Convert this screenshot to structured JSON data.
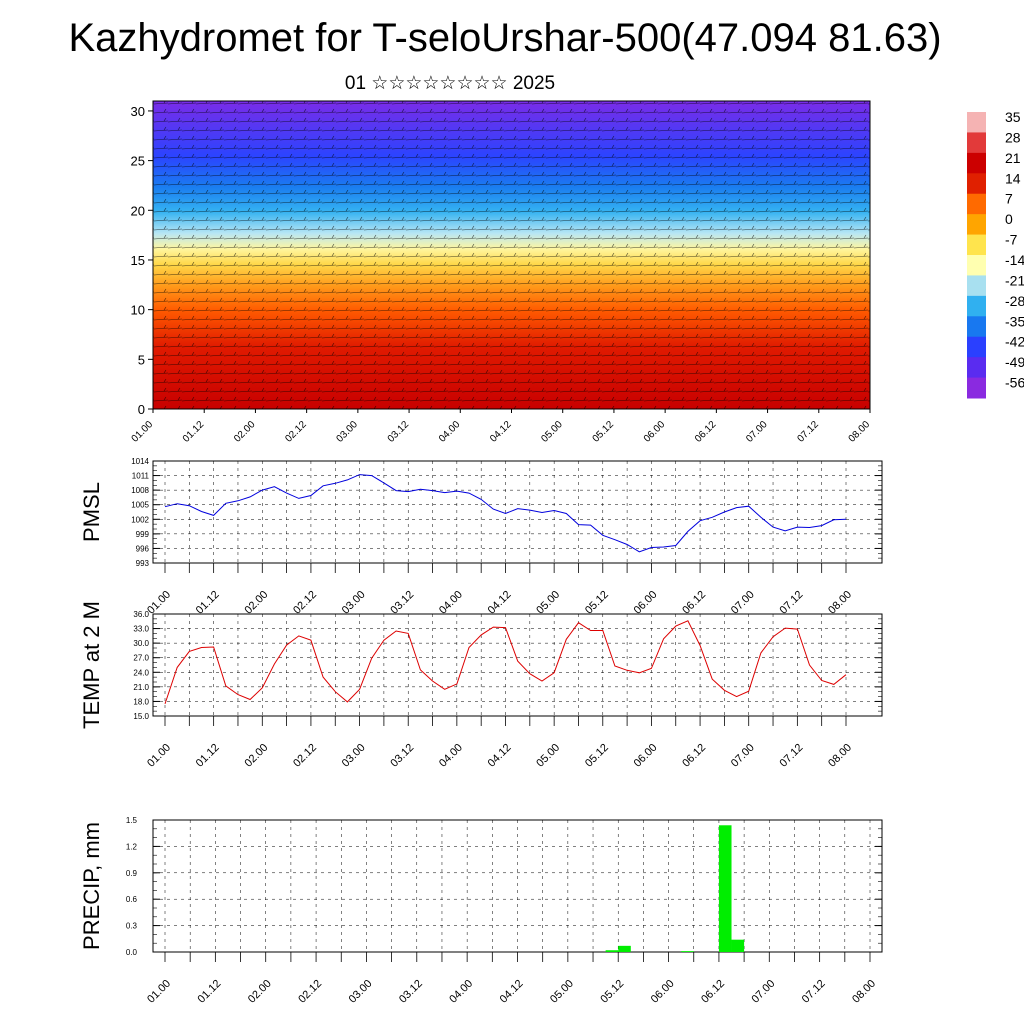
{
  "header": {
    "title": "Kazhydromet for T-seloUrshar-500(47.094 81.63)",
    "subtitle": "01 ☆☆☆☆☆☆☆☆ 2025"
  },
  "time_ticks": [
    "01.00",
    "01.12",
    "02.00",
    "02.12",
    "03.00",
    "03.12",
    "04.00",
    "04.12",
    "05.00",
    "05.12",
    "06.00",
    "06.12",
    "07.00",
    "07.12",
    "08.00"
  ],
  "chart_data": [
    {
      "type": "heatmap",
      "id": "cross-section",
      "description_of_fill": "temperature colour field with wind barbs",
      "x_ticks": [
        "01.00",
        "01.12",
        "02.00",
        "02.12",
        "03.00",
        "03.12",
        "04.00",
        "04.12",
        "05.00",
        "05.12",
        "06.00",
        "06.12",
        "07.00",
        "07.12",
        "08.00"
      ],
      "y_ticks": [
        0,
        5,
        10,
        15,
        20,
        25,
        30
      ],
      "ylim": [
        0,
        31
      ],
      "colorbar_labels": [
        "35",
        "28",
        "21",
        "14",
        "7",
        "0",
        "-7",
        "-14",
        "-21",
        "-28",
        "-35",
        "-42",
        "-49",
        "-56"
      ],
      "colorbar_colors": [
        "#f5b3b3",
        "#e23a3a",
        "#cc0000",
        "#e02000",
        "#ff6a00",
        "#ffa500",
        "#ffe44d",
        "#ffffb0",
        "#a8e0f0",
        "#30b0f0",
        "#1878f0",
        "#2a40ff",
        "#5a2cf0",
        "#8a2ae0"
      ]
    },
    {
      "type": "line",
      "id": "pmsl",
      "ylabel": "PMSL",
      "y_ticks": [
        "1014",
        "1011",
        "1008",
        "1005",
        "1002",
        "999",
        "996",
        "993"
      ],
      "ylim": [
        993,
        1014
      ],
      "color": "#0000dd",
      "x_ticks": [
        "01.00",
        "01.12",
        "02.00",
        "02.12",
        "03.00",
        "03.12",
        "04.00",
        "04.12",
        "05.00",
        "05.12",
        "06.00",
        "06.12",
        "07.00",
        "07.12",
        "08.00"
      ],
      "x": [
        0,
        3,
        6,
        9,
        12,
        15,
        18,
        21,
        24,
        27,
        30,
        33,
        36,
        39,
        42,
        45,
        48,
        51,
        54,
        57,
        60,
        63,
        66,
        69,
        72,
        75,
        78,
        81,
        84,
        87,
        90,
        93,
        96,
        99,
        102,
        105,
        108,
        111,
        114,
        117,
        120,
        123,
        126,
        129,
        132,
        135,
        138,
        141,
        144,
        147,
        150,
        153,
        156,
        159,
        162,
        165,
        168
      ],
      "values": [
        1004.6,
        1005.2,
        1004.8,
        1003.6,
        1002.8,
        1005.3,
        1005.8,
        1006.6,
        1008.0,
        1008.7,
        1007.4,
        1006.3,
        1006.9,
        1008.9,
        1009.4,
        1010.1,
        1011.2,
        1011.0,
        1009.5,
        1007.9,
        1007.7,
        1008.2,
        1007.9,
        1007.5,
        1007.8,
        1007.4,
        1006.1,
        1004.1,
        1003.2,
        1004.2,
        1003.9,
        1003.4,
        1003.8,
        1003.2,
        1000.9,
        1000.8,
        998.7,
        997.8,
        996.8,
        995.3,
        996.2,
        996.3,
        996.6,
        999.5,
        1001.7,
        1002.4,
        1003.5,
        1004.4,
        1004.7,
        1002.4,
        1000.4,
        999.6,
        1000.4,
        1000.3,
        1000.7,
        1001.9,
        1002.0
      ]
    },
    {
      "type": "line",
      "id": "temp",
      "ylabel": "TEMP at 2 M",
      "y_ticks": [
        "36.0",
        "33.0",
        "30.0",
        "27.0",
        "24.0",
        "21.0",
        "18.0",
        "15.0"
      ],
      "ylim": [
        15,
        36
      ],
      "color": "#dd0000",
      "x_ticks": [
        "01.00",
        "01.12",
        "02.00",
        "02.12",
        "03.00",
        "03.12",
        "04.00",
        "04.12",
        "05.00",
        "05.12",
        "06.00",
        "06.12",
        "07.00",
        "07.12",
        "08.00"
      ],
      "x": [
        0,
        3,
        6,
        9,
        12,
        15,
        18,
        21,
        24,
        27,
        30,
        33,
        36,
        39,
        42,
        45,
        48,
        51,
        54,
        57,
        60,
        63,
        66,
        69,
        72,
        75,
        78,
        81,
        84,
        87,
        90,
        93,
        96,
        99,
        102,
        105,
        108,
        111,
        114,
        117,
        120,
        123,
        126,
        129,
        132,
        135,
        138,
        141,
        144,
        147,
        150,
        153,
        156,
        159,
        162,
        165,
        168
      ],
      "values": [
        17.5,
        25.0,
        28.3,
        29.1,
        29.2,
        21.2,
        19.4,
        18.4,
        20.8,
        25.7,
        29.6,
        31.5,
        30.6,
        23.0,
        20.0,
        17.9,
        20.5,
        26.9,
        30.6,
        32.5,
        32.0,
        24.5,
        22.2,
        20.5,
        21.6,
        29.1,
        31.7,
        33.3,
        33.2,
        26.3,
        23.7,
        22.2,
        23.9,
        30.8,
        34.2,
        32.6,
        32.6,
        25.3,
        24.4,
        23.9,
        24.8,
        30.9,
        33.5,
        34.6,
        29.5,
        22.6,
        20.3,
        19.0,
        20.1,
        28.0,
        31.3,
        33.1,
        32.9,
        25.5,
        22.3,
        21.5,
        23.5
      ]
    },
    {
      "type": "bar",
      "id": "precip",
      "ylabel": "PRECIP, mm",
      "y_ticks": [
        "1.5",
        "1.2",
        "0.9",
        "0.6",
        "0.3",
        "0.0"
      ],
      "ylim": [
        0,
        1.5
      ],
      "color": "#00ee00",
      "x_ticks": [
        "01.00",
        "01.12",
        "02.00",
        "02.12",
        "03.00",
        "03.12",
        "04.00",
        "04.12",
        "05.00",
        "05.12",
        "06.00",
        "06.12",
        "07.00",
        "07.12",
        "08.00"
      ],
      "bars": [
        {
          "x": 105,
          "value": 0.02
        },
        {
          "x": 108,
          "value": 0.07
        },
        {
          "x": 123,
          "value": 0.01
        },
        {
          "x": 132,
          "value": 1.44
        },
        {
          "x": 135,
          "value": 0.14
        }
      ]
    }
  ]
}
